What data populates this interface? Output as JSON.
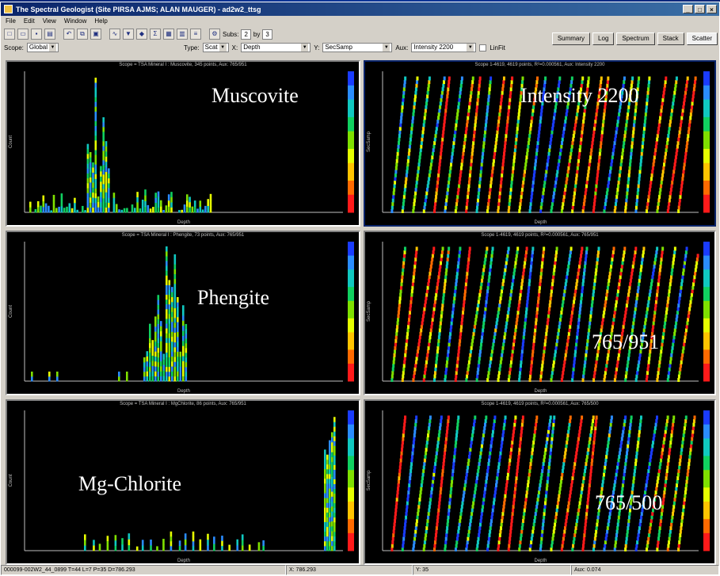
{
  "window": {
    "title": "The Spectral Geologist (Site PIRSA AJMS; ALAN MAUGER) - ad2w2_ttsg",
    "controls": [
      "_",
      "□",
      "×"
    ]
  },
  "menu": [
    "File",
    "Edit",
    "View",
    "Window",
    "Help"
  ],
  "toolbar": {
    "subs_label": "Subs:",
    "subs_value": "2",
    "by_label": "by",
    "by_value": "3"
  },
  "tabs": [
    "Summary",
    "Log",
    "Spectrum",
    "Stack",
    "Scatter"
  ],
  "options": {
    "scope_label": "Scope:",
    "scope_value": "Global",
    "type_label": "Type:",
    "type_value": "Scat",
    "x_label": "X:",
    "x_value": "Depth",
    "y_label": "Y:",
    "y_value": "SecSamp",
    "aux_label": "Aux:",
    "aux_value": "Intensity 2200",
    "linfit_label": "LinFit"
  },
  "panels": {
    "muscovite": {
      "title": "Scope = TSA Mineral I : Muscovite, 345 points,  Aux: 765/951",
      "label": "Muscovite"
    },
    "intensity": {
      "title": "Scope 1-4619, 4619 points, R²=0.000561,  Aux: Intensity 2200",
      "label": "Intensity 2200"
    },
    "phengite": {
      "title": "Scope = TSA Mineral I : Phengite, 73 points,  Aux: 765/951",
      "label": "Phengite"
    },
    "ratio951": {
      "title": "Scope 1-4619, 4619 points, R²=0.000561,  Aux: 765/951",
      "label": "765/951"
    },
    "chlorite": {
      "title": "Scope = TSA Mineral I : MgChlorite, 86 points,  Aux: 765/951",
      "label": "Mg-Chlorite"
    },
    "ratio500": {
      "title": "Scope 1-4619, 4619 points, R²=0.000561,  Aux: 765/500",
      "label": "765/500"
    }
  },
  "axis": {
    "x_label": "Depth",
    "y_label_hist": "Count",
    "y_label_scatter": "SecSamp"
  },
  "status": {
    "left": "000099-002W2_44_0899  T=44 L=7 P=35 D=786.293",
    "mid": "X: 786.293",
    "mid2": "Y: 35",
    "right": "Aux: 0.074"
  },
  "colors": {
    "panel_bg": "#000000",
    "desktop": "#0a2f8c",
    "ramp": [
      "#ff1a1a",
      "#ff6a00",
      "#ffc400",
      "#e6ff00",
      "#7fe000",
      "#10d060",
      "#10c8c0",
      "#2a8cff",
      "#1a3cff"
    ]
  }
}
